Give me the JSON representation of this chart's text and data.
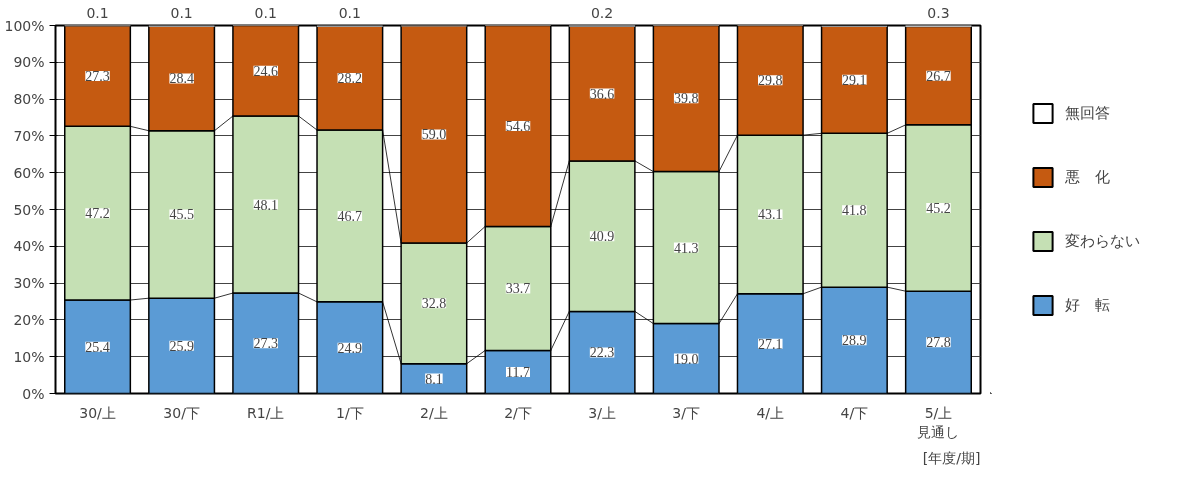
{
  "chart_data": {
    "type": "bar",
    "stacked": true,
    "xlabel": "[年度/期]",
    "categories": [
      "30/上",
      "30/下",
      "R1/上",
      "1/下",
      "2/上",
      "2/下",
      "3/上",
      "3/下",
      "4/上",
      "4/下",
      "5/上"
    ],
    "annotations": [
      "見通し"
    ],
    "series": [
      {
        "name": "好　転",
        "color": "#5b9bd5",
        "values": [
          25.4,
          25.9,
          27.3,
          24.9,
          8.1,
          11.7,
          22.3,
          19.0,
          27.1,
          28.9,
          27.8
        ],
        "value_labels": [
          "25.4",
          "25.9",
          "27.3",
          "24.9",
          "8.1",
          "11.7",
          "22.3",
          "19.0",
          "27.1",
          "28.9",
          "27.8"
        ]
      },
      {
        "name": "変わらない",
        "color": "#c5e0b4",
        "values": [
          47.2,
          45.5,
          48.1,
          46.7,
          32.8,
          33.7,
          40.9,
          41.3,
          43.1,
          41.8,
          45.2
        ],
        "value_labels": [
          "47.2",
          "45.5",
          "48.1",
          "46.7",
          "32.8",
          "33.7",
          "40.9",
          "41.3",
          "43.1",
          "41.8",
          "45.2"
        ]
      },
      {
        "name": "悪　化",
        "color": "#c55a11",
        "values": [
          27.3,
          28.4,
          24.6,
          28.2,
          59.0,
          54.6,
          36.6,
          39.8,
          29.8,
          29.1,
          26.7
        ],
        "value_labels": [
          "27.3",
          "28.4",
          "24.6",
          "28.2",
          "59.0",
          "54.6",
          "36.6",
          "39.8",
          "29.8",
          "29.1",
          "26.7"
        ]
      },
      {
        "name": "無回答",
        "color": "#ffffff",
        "values": [
          0.1,
          0.1,
          0.1,
          0.1,
          null,
          null,
          0.2,
          null,
          null,
          null,
          0.3
        ],
        "value_labels": [
          "0.1",
          "0.1",
          "0.1",
          "0.1",
          null,
          null,
          "0.2",
          null,
          null,
          null,
          "0.3"
        ]
      }
    ],
    "ylim": [
      0,
      100
    ],
    "yticks": [
      {
        "value": 0,
        "label": "0%"
      },
      {
        "value": 10,
        "label": "10%"
      },
      {
        "value": 20,
        "label": "20%"
      },
      {
        "value": 30,
        "label": "30%"
      },
      {
        "value": 40,
        "label": "40%"
      },
      {
        "value": 50,
        "label": "50%"
      },
      {
        "value": 60,
        "label": "60%"
      },
      {
        "value": 70,
        "label": "70%"
      },
      {
        "value": 80,
        "label": "80%"
      },
      {
        "value": 90,
        "label": "90%"
      },
      {
        "value": 100,
        "label": "100%"
      }
    ],
    "grid": "y",
    "legend": "right"
  }
}
